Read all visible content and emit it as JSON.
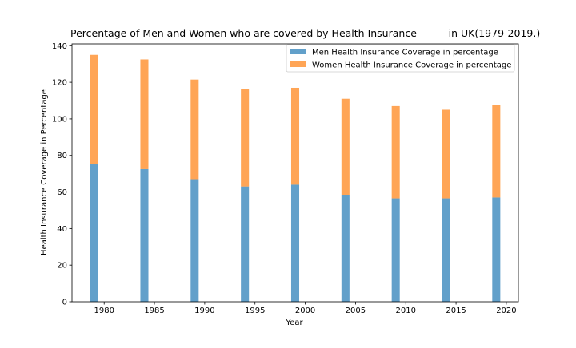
{
  "chart_data": {
    "type": "bar",
    "stacked": true,
    "title": "Percentage of Men and Women who are covered by Health Insurance          in UK(1979-2019.)",
    "xlabel": "Year",
    "ylabel": "Health Insurance Coverage in Percentage",
    "x": [
      1979,
      1984,
      1989,
      1994,
      1999,
      2004,
      2009,
      2014,
      2019
    ],
    "series": [
      {
        "name": "Men Health Insurance Coverage in percentage",
        "color": "#1f77b4",
        "values": [
          75.5,
          72.5,
          67,
          63,
          64,
          58.5,
          56.5,
          56.5,
          57
        ]
      },
      {
        "name": "Women Health Insurance Coverage in percentage",
        "color": "#ff7f0e",
        "values": [
          59.5,
          60,
          54.5,
          53.5,
          53,
          52.5,
          50.5,
          48.5,
          50.5
        ]
      }
    ],
    "xlim": [
      1976.8,
      2021.2
    ],
    "ylim": [
      0,
      141
    ],
    "xticks": [
      1980,
      1985,
      1990,
      1995,
      2000,
      2005,
      2010,
      2015,
      2020
    ],
    "yticks": [
      0,
      20,
      40,
      60,
      80,
      100,
      120,
      140
    ],
    "bar_width_years": 0.8,
    "bar_alpha": 0.7,
    "grid": false,
    "legend_position": "top-right"
  }
}
